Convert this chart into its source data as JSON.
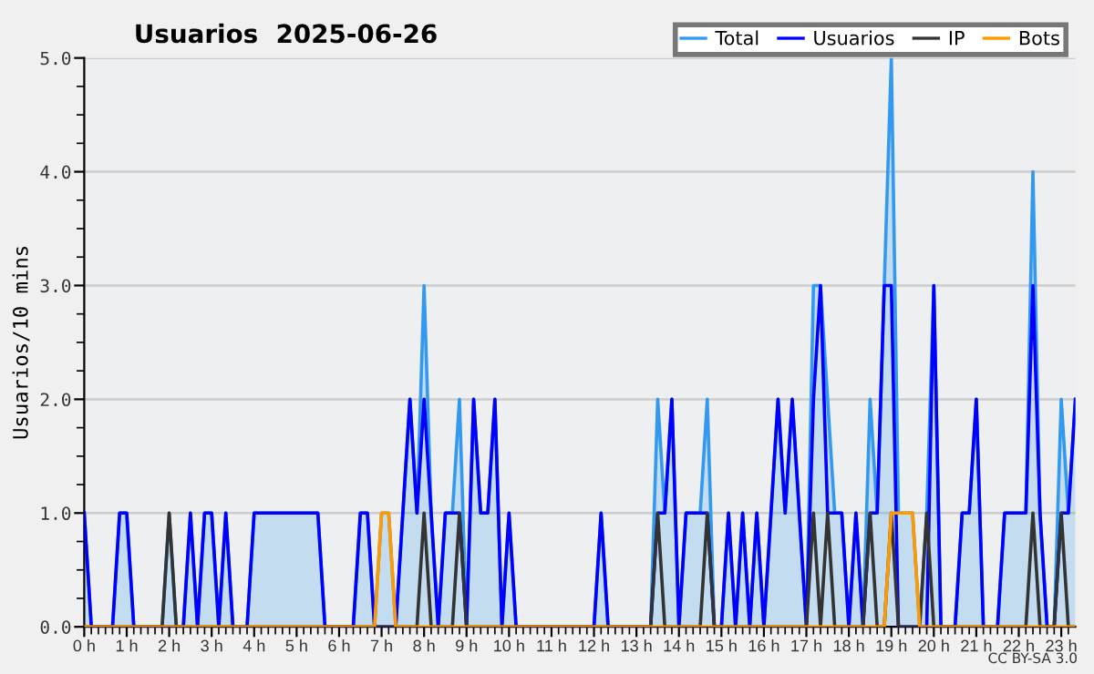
{
  "chart_data": {
    "type": "line",
    "title": "Usuarios  2025-06-26",
    "ylabel": "Usuarios/10 mins",
    "annotations": [
      "CC BY-SA 3.0"
    ],
    "x": [
      0,
      0.167,
      0.333,
      0.5,
      0.667,
      0.833,
      1,
      1.167,
      1.333,
      1.5,
      1.667,
      1.833,
      2,
      2.167,
      2.333,
      2.5,
      2.667,
      2.833,
      3,
      3.167,
      3.333,
      3.5,
      3.667,
      3.833,
      4,
      4.167,
      4.333,
      4.5,
      4.667,
      4.833,
      5,
      5.167,
      5.333,
      5.5,
      5.667,
      5.833,
      6,
      6.167,
      6.333,
      6.5,
      6.667,
      6.833,
      7,
      7.167,
      7.333,
      7.5,
      7.667,
      7.833,
      8,
      8.167,
      8.333,
      8.5,
      8.667,
      8.833,
      9,
      9.167,
      9.333,
      9.5,
      9.667,
      9.833,
      10,
      10.167,
      10.333,
      10.5,
      10.667,
      10.833,
      11,
      11.167,
      11.333,
      11.5,
      11.667,
      11.833,
      12,
      12.167,
      12.333,
      12.5,
      12.667,
      12.833,
      13,
      13.167,
      13.333,
      13.5,
      13.667,
      13.833,
      14,
      14.167,
      14.333,
      14.5,
      14.667,
      14.833,
      15,
      15.167,
      15.333,
      15.5,
      15.667,
      15.833,
      16,
      16.167,
      16.333,
      16.5,
      16.667,
      16.833,
      17,
      17.167,
      17.333,
      17.5,
      17.667,
      17.833,
      18,
      18.167,
      18.333,
      18.5,
      18.667,
      18.833,
      19,
      19.167,
      19.333,
      19.5,
      19.667,
      19.833,
      20,
      20.167,
      20.333,
      20.5,
      20.667,
      20.833,
      21,
      21.167,
      21.333,
      21.5,
      21.667,
      21.833,
      22,
      22.167,
      22.333,
      22.5,
      22.667,
      22.833,
      23,
      23.167,
      23.333
    ],
    "series": [
      {
        "name": "Total",
        "type": "area",
        "color": "#3399ee",
        "values": [
          1,
          0,
          0,
          0,
          0,
          1,
          1,
          0,
          0,
          0,
          0,
          0,
          1,
          0,
          0,
          1,
          0,
          1,
          1,
          0,
          1,
          0,
          0,
          0,
          1,
          1,
          1,
          1,
          1,
          1,
          1,
          1,
          1,
          1,
          0,
          0,
          0,
          0,
          0,
          1,
          1,
          0,
          1,
          1,
          0,
          1,
          2,
          1,
          3,
          1,
          0,
          1,
          1,
          2,
          0,
          2,
          1,
          1,
          2,
          0,
          1,
          0,
          0,
          0,
          0,
          0,
          0,
          0,
          0,
          0,
          0,
          0,
          0,
          1,
          0,
          0,
          0,
          0,
          0,
          0,
          0,
          2,
          1,
          2,
          0,
          1,
          1,
          1,
          2,
          0,
          0,
          1,
          0,
          1,
          0,
          1,
          0,
          1,
          2,
          1,
          2,
          1,
          0,
          3,
          3,
          2,
          1,
          1,
          0,
          1,
          0,
          2,
          1,
          3,
          5,
          1,
          1,
          1,
          0,
          1,
          3,
          0,
          0,
          0,
          1,
          1,
          2,
          0,
          0,
          0,
          1,
          1,
          1,
          1,
          4,
          1,
          0,
          0,
          2,
          1,
          2
        ]
      },
      {
        "name": "Usuarios",
        "color": "#0000ff",
        "values": [
          1,
          0,
          0,
          0,
          0,
          1,
          1,
          0,
          0,
          0,
          0,
          0,
          0,
          0,
          0,
          1,
          0,
          1,
          1,
          0,
          1,
          0,
          0,
          0,
          1,
          1,
          1,
          1,
          1,
          1,
          1,
          1,
          1,
          1,
          0,
          0,
          0,
          0,
          0,
          1,
          1,
          0,
          0,
          0,
          0,
          1,
          2,
          1,
          2,
          1,
          0,
          1,
          1,
          1,
          0,
          2,
          1,
          1,
          2,
          0,
          1,
          0,
          0,
          0,
          0,
          0,
          0,
          0,
          0,
          0,
          0,
          0,
          0,
          1,
          0,
          0,
          0,
          0,
          0,
          0,
          0,
          1,
          1,
          2,
          0,
          1,
          1,
          1,
          1,
          0,
          0,
          1,
          0,
          1,
          0,
          1,
          0,
          1,
          2,
          1,
          2,
          1,
          0,
          2,
          3,
          1,
          1,
          1,
          0,
          1,
          0,
          1,
          1,
          3,
          3,
          0,
          0,
          0,
          0,
          0,
          3,
          0,
          0,
          0,
          1,
          1,
          2,
          0,
          0,
          0,
          1,
          1,
          1,
          1,
          3,
          1,
          0,
          0,
          1,
          1,
          2
        ]
      },
      {
        "name": "IP",
        "color": "#333333",
        "values": [
          0,
          0,
          0,
          0,
          0,
          0,
          0,
          0,
          0,
          0,
          0,
          0,
          1,
          0,
          0,
          0,
          0,
          0,
          0,
          0,
          0,
          0,
          0,
          0,
          0,
          0,
          0,
          0,
          0,
          0,
          0,
          0,
          0,
          0,
          0,
          0,
          0,
          0,
          0,
          0,
          0,
          0,
          0,
          0,
          0,
          0,
          0,
          0,
          1,
          0,
          0,
          0,
          0,
          1,
          0,
          0,
          0,
          0,
          0,
          0,
          0,
          0,
          0,
          0,
          0,
          0,
          0,
          0,
          0,
          0,
          0,
          0,
          0,
          0,
          0,
          0,
          0,
          0,
          0,
          0,
          0,
          1,
          0,
          0,
          0,
          0,
          0,
          0,
          1,
          0,
          0,
          0,
          0,
          0,
          0,
          0,
          0,
          0,
          0,
          0,
          0,
          0,
          0,
          1,
          0,
          1,
          0,
          0,
          0,
          0,
          0,
          1,
          0,
          0,
          1,
          0,
          0,
          0,
          0,
          1,
          0,
          0,
          0,
          0,
          0,
          0,
          0,
          0,
          0,
          0,
          0,
          0,
          0,
          0,
          1,
          0,
          0,
          0,
          1,
          0,
          0
        ]
      },
      {
        "name": "Bots",
        "color": "#ff9900",
        "values": [
          0,
          0,
          0,
          0,
          0,
          0,
          0,
          0,
          0,
          0,
          0,
          0,
          0,
          0,
          0,
          0,
          0,
          0,
          0,
          0,
          0,
          0,
          0,
          0,
          0,
          0,
          0,
          0,
          0,
          0,
          0,
          0,
          0,
          0,
          0,
          0,
          0,
          0,
          0,
          0,
          0,
          0,
          1,
          1,
          0,
          0,
          0,
          0,
          0,
          0,
          0,
          0,
          0,
          0,
          0,
          0,
          0,
          0,
          0,
          0,
          0,
          0,
          0,
          0,
          0,
          0,
          0,
          0,
          0,
          0,
          0,
          0,
          0,
          0,
          0,
          0,
          0,
          0,
          0,
          0,
          0,
          0,
          0,
          0,
          0,
          0,
          0,
          0,
          0,
          0,
          0,
          0,
          0,
          0,
          0,
          0,
          0,
          0,
          0,
          0,
          0,
          0,
          0,
          0,
          0,
          0,
          0,
          0,
          0,
          0,
          0,
          0,
          0,
          0,
          1,
          1,
          1,
          1,
          0,
          0,
          0,
          0,
          0,
          0,
          0,
          0,
          0,
          0,
          0,
          0,
          0,
          0,
          0,
          0,
          0,
          0,
          0,
          0,
          0,
          0,
          0
        ]
      }
    ],
    "xlim": [
      0,
      23.333
    ],
    "xticks": [
      {
        "value": 0,
        "label": "0 h"
      },
      {
        "value": 1,
        "label": "1 h"
      },
      {
        "value": 2,
        "label": "2 h"
      },
      {
        "value": 3,
        "label": "3 h"
      },
      {
        "value": 4,
        "label": "4 h"
      },
      {
        "value": 5,
        "label": "5 h"
      },
      {
        "value": 6,
        "label": "6 h"
      },
      {
        "value": 7,
        "label": "7 h"
      },
      {
        "value": 8,
        "label": "8 h"
      },
      {
        "value": 9,
        "label": "9 h"
      },
      {
        "value": 10,
        "label": "10 h"
      },
      {
        "value": 11,
        "label": "11 h"
      },
      {
        "value": 12,
        "label": "12 h"
      },
      {
        "value": 13,
        "label": "13 h"
      },
      {
        "value": 14,
        "label": "14 h"
      },
      {
        "value": 15,
        "label": "15 h"
      },
      {
        "value": 16,
        "label": "16 h"
      },
      {
        "value": 17,
        "label": "17 h"
      },
      {
        "value": 18,
        "label": "18 h"
      },
      {
        "value": 19,
        "label": "19 h"
      },
      {
        "value": 20,
        "label": "20 h"
      },
      {
        "value": 21,
        "label": "21 h"
      },
      {
        "value": 22,
        "label": "22 h"
      },
      {
        "value": 23,
        "label": "23 h"
      }
    ],
    "ylim": [
      0,
      5
    ],
    "yticks": [
      {
        "value": 0,
        "label": "0.0"
      },
      {
        "value": 1,
        "label": "1.0"
      },
      {
        "value": 2,
        "label": "2.0"
      },
      {
        "value": 3,
        "label": "3.0"
      },
      {
        "value": 4,
        "label": "4.0"
      },
      {
        "value": 5,
        "label": "5.0"
      }
    ],
    "grid": "y",
    "legend": "top right",
    "marker": "none",
    "line_style": "solid"
  }
}
